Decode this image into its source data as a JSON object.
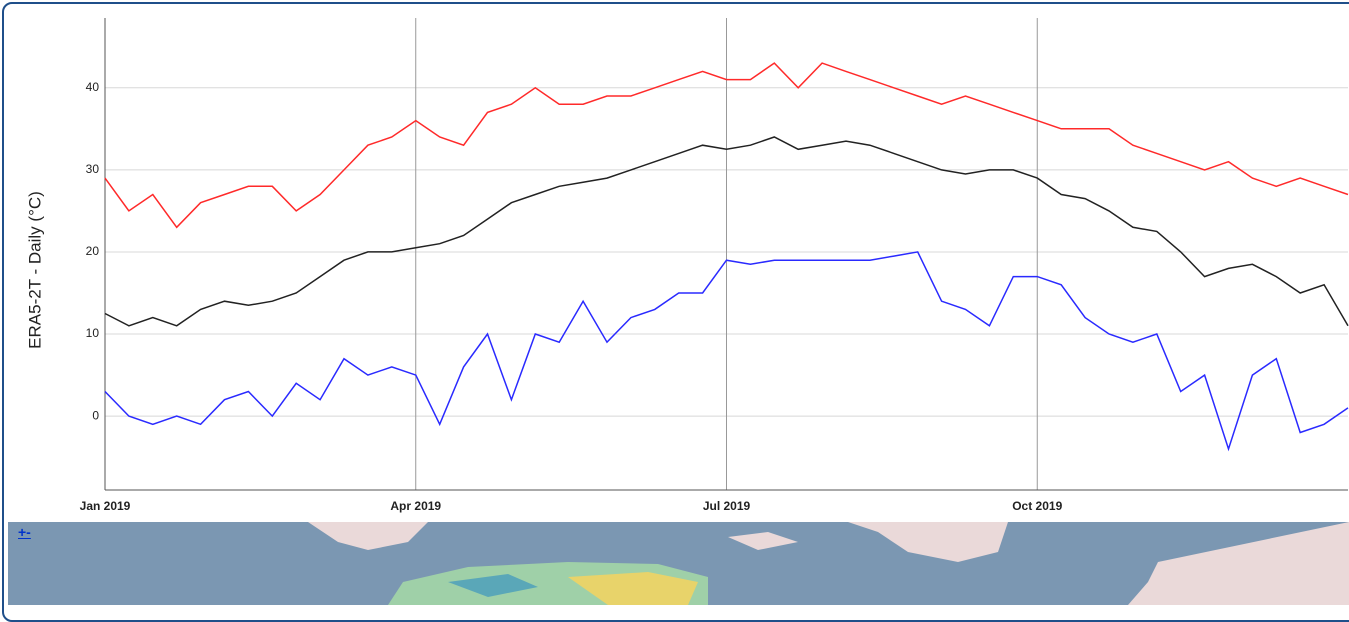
{
  "chart_data": {
    "type": "line",
    "y_label": "ERA5-2T - Daily (°C)",
    "categories": [
      "Jan 2019",
      null,
      null,
      null,
      null,
      null,
      null,
      null,
      null,
      null,
      null,
      null,
      null,
      "Apr 2019",
      null,
      null,
      null,
      null,
      null,
      null,
      null,
      null,
      null,
      null,
      null,
      null,
      "Jul 2019",
      null,
      null,
      null,
      null,
      null,
      null,
      null,
      null,
      null,
      null,
      null,
      null,
      "Oct 2019",
      null,
      null,
      null,
      null,
      null,
      null,
      null,
      null,
      null,
      null,
      null,
      null,
      null
    ],
    "series": [
      {
        "color": "#ff2a2a",
        "values": [
          29,
          25,
          27,
          23,
          26,
          27,
          28,
          28,
          25,
          27,
          30,
          33,
          34,
          36,
          34,
          33,
          37,
          38,
          40,
          38,
          38,
          39,
          39,
          40,
          41,
          42,
          41,
          41,
          43,
          40,
          43,
          42,
          41,
          40,
          39,
          38,
          39,
          38,
          37,
          36,
          35,
          35,
          35,
          33,
          32,
          31,
          30,
          31,
          29,
          28,
          29,
          28,
          27
        ]
      },
      {
        "color": "#222222",
        "values": [
          12.5,
          11,
          12,
          11,
          13,
          14,
          13.5,
          14,
          15,
          17,
          19,
          20,
          20,
          20.5,
          21,
          22,
          24,
          26,
          27,
          28,
          28.5,
          29,
          30,
          31,
          32,
          33,
          32.5,
          33,
          34,
          32.5,
          33,
          33.5,
          33,
          32,
          31,
          30,
          29.5,
          30,
          30,
          29,
          27,
          26.5,
          25,
          23,
          22.5,
          20,
          17,
          18,
          18.5,
          17,
          15,
          16,
          11
        ]
      },
      {
        "color": "#2a2aff",
        "values": [
          3,
          0,
          -1,
          0,
          -1,
          2,
          3,
          0,
          4,
          2,
          7,
          5,
          6,
          5,
          -1,
          6,
          10,
          2,
          10,
          9,
          14,
          9,
          12,
          13,
          15,
          15,
          19,
          18.5,
          19,
          19,
          19,
          19,
          19,
          19.5,
          20,
          14,
          13,
          11,
          17,
          17,
          16,
          12,
          10,
          9,
          10,
          3,
          5,
          -4,
          5,
          7,
          -2,
          -1,
          1
        ]
      }
    ],
    "ylim": [
      -9,
      48.5
    ],
    "yticks": [
      0,
      10,
      20,
      30,
      40
    ],
    "grid": true
  },
  "map": {
    "zoom_label": "+-"
  }
}
